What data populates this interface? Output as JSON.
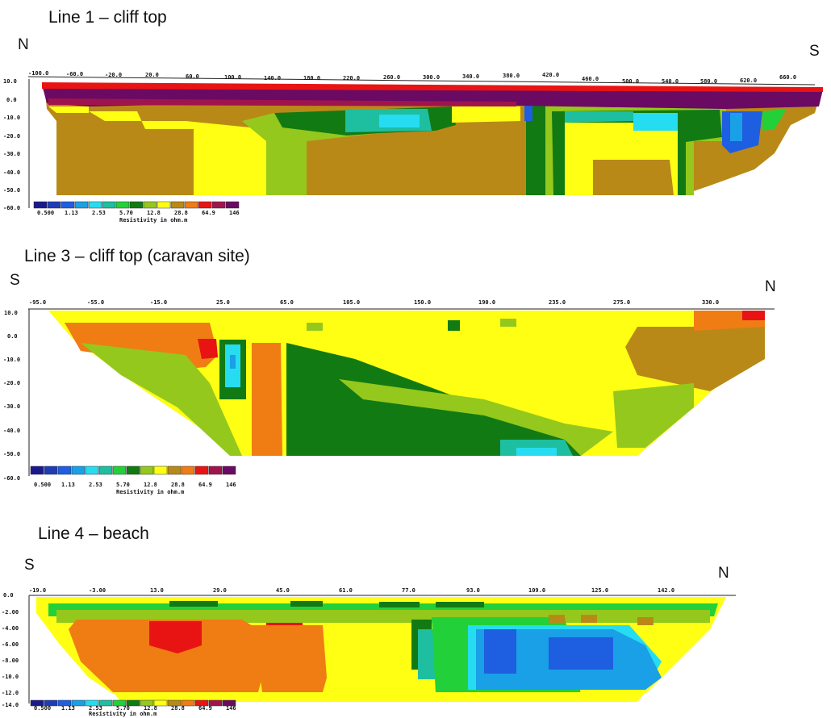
{
  "colors": {
    "c0": "#1a1a8c",
    "c1": "#1f3cb4",
    "c2": "#1e5ee0",
    "c3": "#1aa0e6",
    "c4": "#26dcf0",
    "c5": "#1ebea0",
    "c6": "#22d13a",
    "c7": "#127a12",
    "c8": "#94c81c",
    "c9": "#ffff14",
    "c10": "#b98918",
    "c11": "#f07c14",
    "c12": "#e81414",
    "c13": "#a0144e",
    "c14": "#6a0a62"
  },
  "legend": {
    "labels": [
      "0.500",
      "1.13",
      "2.53",
      "5.70",
      "12.8",
      "28.8",
      "64.9",
      "146"
    ],
    "title": "Resistivity in ohm.m",
    "title_small": "Resistivity in ohm.m"
  },
  "panels": [
    {
      "heading": "Line 1 – cliff top",
      "left_dir": "N",
      "right_dir": "S",
      "x_ticks": [
        "-100.0",
        "-60.0",
        "-20.0",
        "20.0",
        "60.0",
        "100.0",
        "140.0",
        "180.0",
        "220.0",
        "260.0",
        "300.0",
        "340.0",
        "380.0",
        "420.0",
        "460.0",
        "500.0",
        "540.0",
        "580.0",
        "620.0",
        "660.0"
      ],
      "y_ticks": [
        "10.0",
        "0.0",
        "-10.0",
        "-20.0",
        "-30.0",
        "-40.0",
        "-50.0",
        "-60.0"
      ]
    },
    {
      "heading": "Line 3 – cliff top (caravan site)",
      "left_dir": "S",
      "right_dir": "N",
      "x_ticks": [
        "-95.0",
        "-55.0",
        "-15.0",
        "25.0",
        "65.0",
        "105.0",
        "150.0",
        "190.0",
        "235.0",
        "275.0",
        "330.0"
      ],
      "y_ticks": [
        "10.0",
        "0.0",
        "-10.0",
        "-20.0",
        "-30.0",
        "-40.0",
        "-50.0",
        "-60.0"
      ]
    },
    {
      "heading": "Line 4 – beach",
      "left_dir": "S",
      "right_dir": "N",
      "x_ticks": [
        "-19.0",
        "-3.00",
        "13.0",
        "29.0",
        "45.0",
        "61.0",
        "77.0",
        "93.0",
        "109.0",
        "125.0",
        "142.0"
      ],
      "y_ticks": [
        "0.0",
        "-2.00",
        "-4.00",
        "-6.00",
        "-8.00",
        "-10.0",
        "-12.0",
        "-14.0"
      ]
    }
  ]
}
